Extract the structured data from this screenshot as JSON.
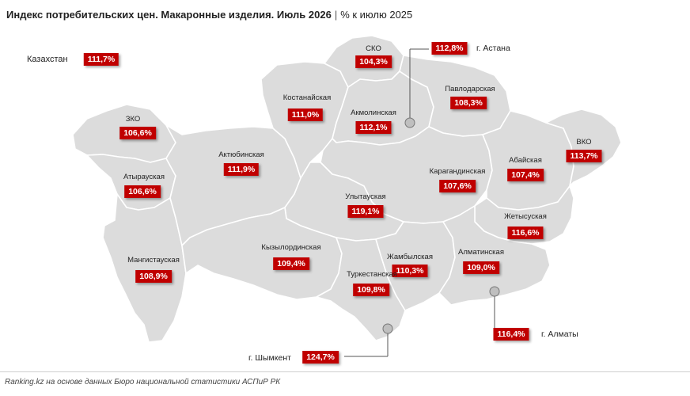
{
  "title": {
    "main": "Индекс потребительских цен. Макаронные изделия. Июль 2026",
    "separator": "|",
    "subtitle": "% к июлю 2025"
  },
  "national": {
    "label": "Казахстан",
    "value": "111,7%"
  },
  "regions": {
    "sko": {
      "name": "СКО",
      "value": "104,3%"
    },
    "kostanay": {
      "name": "Костанайская",
      "value": "111,0%"
    },
    "akmola": {
      "name": "Акмолинская",
      "value": "112,1%"
    },
    "pavlodar": {
      "name": "Павлодарская",
      "value": "108,3%"
    },
    "zko": {
      "name": "ЗКО",
      "value": "106,6%"
    },
    "aktobe": {
      "name": "Актюбинская",
      "value": "111,9%"
    },
    "atyrau": {
      "name": "Атырауская",
      "value": "106,6%"
    },
    "karaganda": {
      "name": "Карагандинская",
      "value": "107,6%"
    },
    "abai": {
      "name": "Абайская",
      "value": "107,4%"
    },
    "vko": {
      "name": "ВКО",
      "value": "113,7%"
    },
    "ulytau": {
      "name": "Улытауская",
      "value": "119,1%"
    },
    "zhetysu": {
      "name": "Жетысуская",
      "value": "116,6%"
    },
    "mangystau": {
      "name": "Мангистауская",
      "value": "108,9%"
    },
    "kyzylorda": {
      "name": "Кызылординская",
      "value": "109,4%"
    },
    "zhambyl": {
      "name": "Жамбылская",
      "value": "110,3%"
    },
    "almaty_obl": {
      "name": "Алматинская",
      "value": "109,0%"
    },
    "turkestan": {
      "name": "Туркестанская",
      "value": "109,8%"
    }
  },
  "cities": {
    "astana": {
      "name": "г. Астана",
      "value": "112,8%"
    },
    "almaty": {
      "name": "г. Алматы",
      "value": "116,4%"
    },
    "shymkent": {
      "name": "г. Шымкент",
      "value": "124,7%"
    }
  },
  "colors": {
    "accent": "#c00000",
    "map_fill": "#dcdcdc",
    "border": "#ffffff"
  },
  "footer": "Ranking.kz на основе данных Бюро национальной статистики АСПиР РК"
}
